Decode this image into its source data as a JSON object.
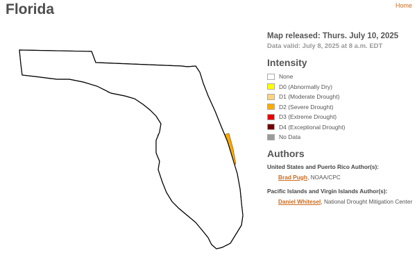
{
  "title": "Florida",
  "nav": {
    "home_label": "Home"
  },
  "map_info": {
    "released": "Map released: Thurs. July 10, 2025",
    "valid": "Data valid: July 8, 2025 at 8 a.m. EDT"
  },
  "intensity": {
    "title": "Intensity",
    "items": [
      {
        "label": "None",
        "color": "#ffffff"
      },
      {
        "label": "D0 (Abnormally Dry)",
        "color": "#ffff00"
      },
      {
        "label": "D1 (Moderate Drought)",
        "color": "#fcd37f"
      },
      {
        "label": "D2 (Severe Drought)",
        "color": "#ffaa00"
      },
      {
        "label": "D3 (Extreme Drought)",
        "color": "#e60000"
      },
      {
        "label": "D4 (Exceptional Drought)",
        "color": "#730000"
      },
      {
        "label": "No Data",
        "color": "#9b9b9b"
      }
    ]
  },
  "authors": {
    "title": "Authors",
    "groups": [
      {
        "heading": "United States and Puerto Rico Author(s):",
        "name": "Brad Pugh",
        "affiliation": ", NOAA/CPC"
      },
      {
        "heading": "Pacific Islands and Virgin Islands Author(s):",
        "name": "Daniel Whitesel",
        "affiliation": ", National Drought Mitigation Center"
      }
    ]
  },
  "map_colors": {
    "none": "#ffffff",
    "d0": "#ffff00",
    "d1": "#fcd37f",
    "d2": "#ffaa00",
    "d3": "#e60000",
    "water": "#8fd3f5",
    "border": "#000000"
  }
}
